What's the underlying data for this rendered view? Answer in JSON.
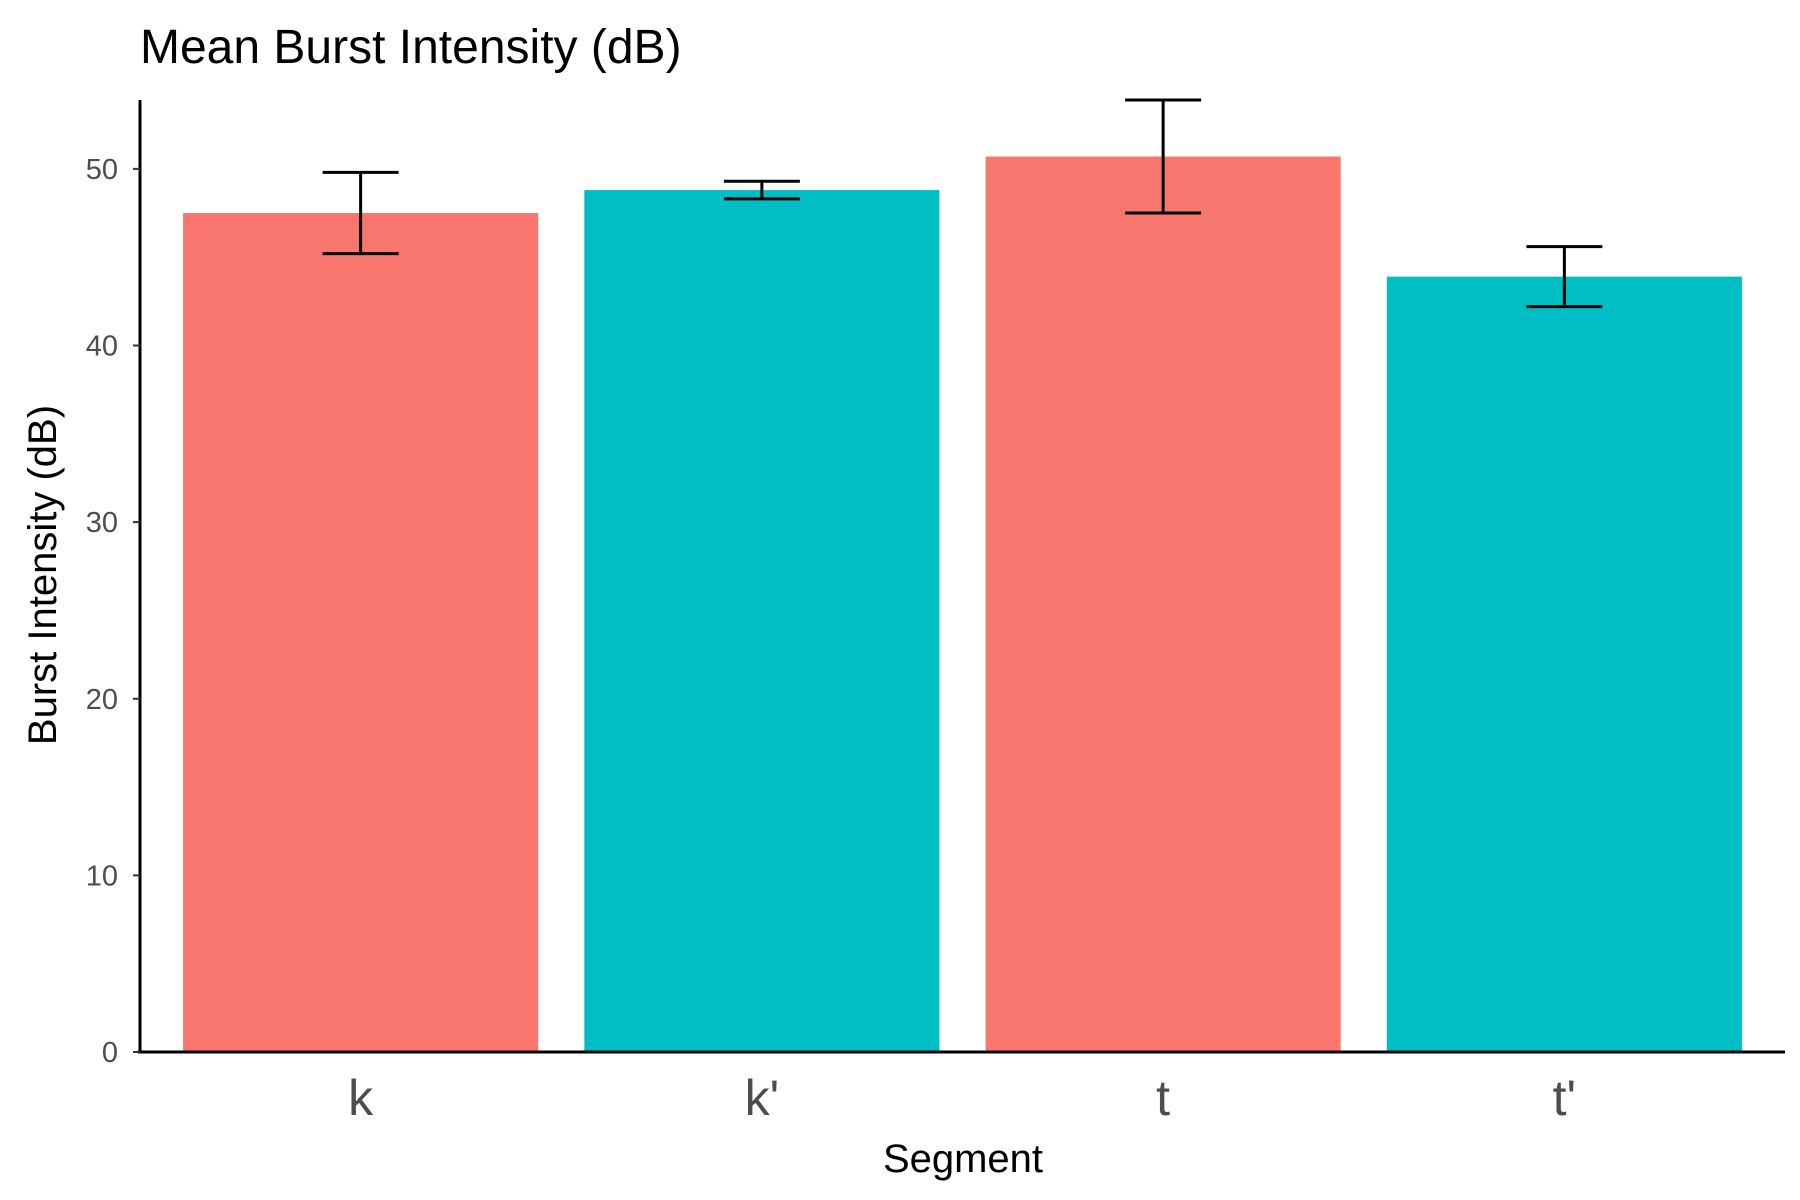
{
  "chart_data": {
    "type": "bar",
    "title": "Mean Burst Intensity (dB)",
    "xlabel": "Segment",
    "ylabel": "Burst Intensity (dB)",
    "categories": [
      "k",
      "k'",
      "t",
      "t'"
    ],
    "values": [
      47.5,
      48.8,
      50.7,
      43.9
    ],
    "error_low": [
      45.2,
      48.3,
      47.5,
      42.2
    ],
    "error_high": [
      49.8,
      49.3,
      53.9,
      45.6
    ],
    "bar_colors": [
      "#F8766D",
      "#00BFC4",
      "#F8766D",
      "#00BFC4"
    ],
    "y_ticks": [
      0,
      10,
      20,
      30,
      40,
      50
    ],
    "y_tick_labels": [
      "0",
      "10",
      "20",
      "30",
      "40",
      "50"
    ],
    "ylim": [
      0,
      53.9
    ],
    "grid": false,
    "legend": "none"
  }
}
